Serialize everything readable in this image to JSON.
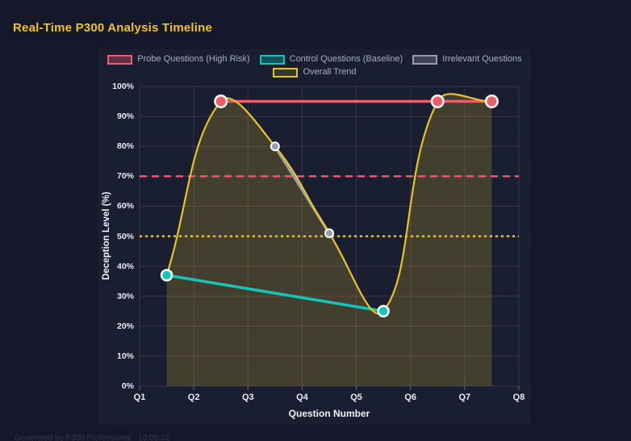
{
  "page": {
    "title": "Real-Time P300 Analysis Timeline",
    "title_color": "#f0c41e",
    "background_color": "#14182a",
    "card_background_color": "#1a1e31",
    "footer": "Generated by P300 Professional - 10:05:12"
  },
  "chart_data": {
    "type": "line",
    "title": "Real-Time P300 Analysis Timeline",
    "xlabel": "Question Number",
    "ylabel": "Deception Level (%)",
    "xlim": [
      1,
      8
    ],
    "ylim": [
      0,
      100
    ],
    "x_ticks": [
      "Q1",
      "Q2",
      "Q3",
      "Q4",
      "Q5",
      "Q6",
      "Q7",
      "Q8"
    ],
    "y_ticks": [
      "0%",
      "10%",
      "20%",
      "30%",
      "40%",
      "50%",
      "60%",
      "70%",
      "80%",
      "90%",
      "100%"
    ],
    "grid": true,
    "legend_position": "top",
    "series": [
      {
        "name": "Probe Questions (High Risk)",
        "color": "#f25c69",
        "swatch_fill": "rgba(242,92,105,0.3)",
        "points": [
          [
            2.5,
            95
          ],
          [
            6.5,
            95
          ],
          [
            7.5,
            95
          ]
        ],
        "line_width": 3.5,
        "point_radius": 7.25,
        "point_border_width": 2.5,
        "smooth": false,
        "fill": false
      },
      {
        "name": "Control Questions (Baseline)",
        "color": "#14c6ba",
        "swatch_fill": "rgba(20,198,186,0.3)",
        "points": [
          [
            1.5,
            37
          ],
          [
            5.5,
            25
          ]
        ],
        "line_width": 3.5,
        "point_radius": 6.5,
        "point_border_width": 2.5,
        "smooth": false,
        "fill": false
      },
      {
        "name": "Irrelevant Questions",
        "color": "#989da8",
        "swatch_fill": "rgba(152,157,168,0.3)",
        "points": [
          [
            3.5,
            80
          ],
          [
            4.5,
            51
          ]
        ],
        "line_width": 3.5,
        "point_radius": 5,
        "point_border_width": 2,
        "smooth": false,
        "fill": false
      },
      {
        "name": "Overall Trend",
        "color": "#e9c227",
        "swatch_fill": "rgba(233,194,39,0.15)",
        "points": [
          [
            1.5,
            37
          ],
          [
            2.5,
            95
          ],
          [
            3.5,
            80
          ],
          [
            4.5,
            51
          ],
          [
            5.5,
            25
          ],
          [
            6.5,
            95
          ],
          [
            7.5,
            95
          ]
        ],
        "line_width": 2.2,
        "point_radius": 0,
        "point_border_width": 0,
        "smooth": true,
        "fill": true,
        "fill_color": "rgba(233,194,39,0.2)"
      }
    ],
    "threshold_lines": [
      {
        "y": 70,
        "color": "#f2556b",
        "style": "dashed"
      },
      {
        "y": 50,
        "color": "#e9c227",
        "style": "dotted"
      }
    ],
    "colors": {
      "grid": "rgba(255,255,255,0.11)",
      "tick_mark": "rgba(255,255,255,0.35)",
      "point_border": "#ffffff",
      "tick_label": "#e8ebf2",
      "axis_title": "#f0f2f7",
      "legend_label": "#a9afbc"
    }
  }
}
